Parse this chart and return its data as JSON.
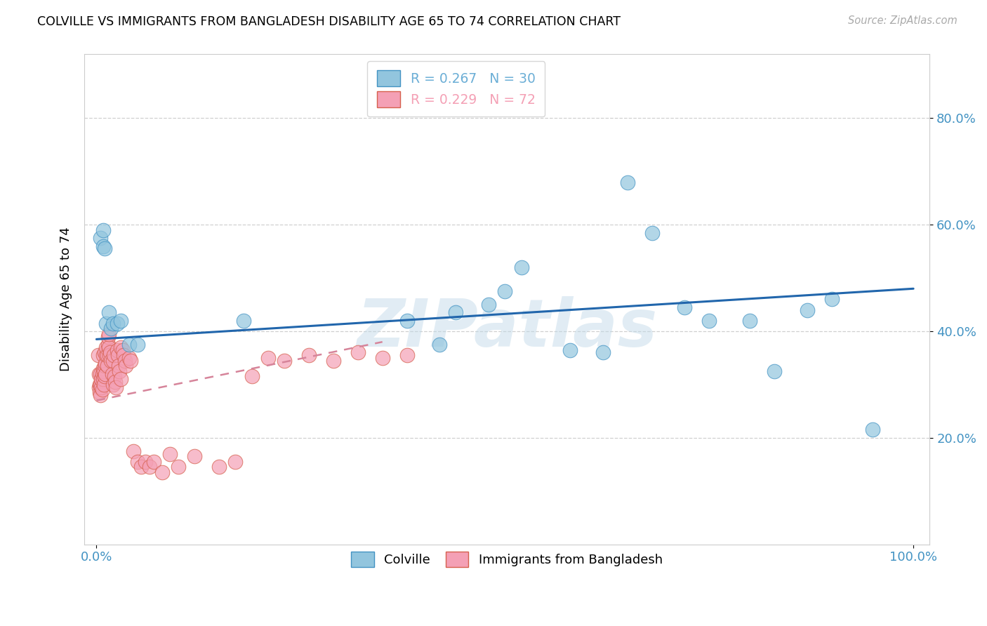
{
  "title": "COLVILLE VS IMMIGRANTS FROM BANGLADESH DISABILITY AGE 65 TO 74 CORRELATION CHART",
  "source": "Source: ZipAtlas.com",
  "ylabel": "Disability Age 65 to 74",
  "watermark": "ZIPatlas",
  "colville_color": "#92c5de",
  "bangladesh_color": "#f4a0b5",
  "colville_edge": "#4393c3",
  "bangladesh_edge": "#d6604d",
  "colville_trendline_color": "#2166ac",
  "bangladesh_trendline_color": "#d6849a",
  "legend_entries": [
    {
      "label": "R = 0.267   N = 30",
      "color": "#6baed6"
    },
    {
      "label": "R = 0.229   N = 72",
      "color": "#f4a0b5"
    }
  ],
  "colville_x": [
    0.005,
    0.008,
    0.008,
    0.01,
    0.012,
    0.015,
    0.018,
    0.02,
    0.025,
    0.03,
    0.04,
    0.05,
    0.18,
    0.38,
    0.42,
    0.44,
    0.48,
    0.5,
    0.52,
    0.58,
    0.62,
    0.65,
    0.68,
    0.72,
    0.75,
    0.8,
    0.83,
    0.87,
    0.9,
    0.95
  ],
  "colville_y": [
    0.575,
    0.59,
    0.56,
    0.555,
    0.415,
    0.435,
    0.405,
    0.415,
    0.415,
    0.42,
    0.375,
    0.375,
    0.42,
    0.42,
    0.375,
    0.435,
    0.45,
    0.475,
    0.52,
    0.365,
    0.36,
    0.68,
    0.585,
    0.445,
    0.42,
    0.42,
    0.325,
    0.44,
    0.46,
    0.215
  ],
  "bangladesh_x": [
    0.002,
    0.003,
    0.003,
    0.004,
    0.004,
    0.005,
    0.005,
    0.005,
    0.006,
    0.006,
    0.007,
    0.007,
    0.008,
    0.008,
    0.008,
    0.009,
    0.009,
    0.01,
    0.01,
    0.01,
    0.011,
    0.011,
    0.012,
    0.012,
    0.013,
    0.013,
    0.014,
    0.014,
    0.015,
    0.015,
    0.016,
    0.017,
    0.018,
    0.019,
    0.02,
    0.02,
    0.021,
    0.022,
    0.023,
    0.024,
    0.025,
    0.026,
    0.027,
    0.028,
    0.03,
    0.03,
    0.032,
    0.033,
    0.035,
    0.036,
    0.04,
    0.042,
    0.045,
    0.05,
    0.055,
    0.06,
    0.065,
    0.07,
    0.08,
    0.09,
    0.1,
    0.12,
    0.15,
    0.17,
    0.19,
    0.21,
    0.23,
    0.26,
    0.29,
    0.32,
    0.35,
    0.38
  ],
  "bangladesh_y": [
    0.355,
    0.32,
    0.295,
    0.285,
    0.3,
    0.28,
    0.3,
    0.32,
    0.295,
    0.31,
    0.29,
    0.32,
    0.31,
    0.33,
    0.355,
    0.3,
    0.325,
    0.315,
    0.335,
    0.36,
    0.32,
    0.34,
    0.355,
    0.37,
    0.335,
    0.355,
    0.375,
    0.39,
    0.37,
    0.395,
    0.355,
    0.36,
    0.345,
    0.32,
    0.3,
    0.345,
    0.355,
    0.315,
    0.305,
    0.295,
    0.365,
    0.355,
    0.335,
    0.325,
    0.31,
    0.37,
    0.365,
    0.355,
    0.345,
    0.335,
    0.35,
    0.345,
    0.175,
    0.155,
    0.145,
    0.155,
    0.145,
    0.155,
    0.135,
    0.17,
    0.145,
    0.165,
    0.145,
    0.155,
    0.315,
    0.35,
    0.345,
    0.355,
    0.345,
    0.36,
    0.35,
    0.355
  ],
  "colville_trend_x": [
    0.0,
    1.0
  ],
  "colville_trend_y": [
    0.385,
    0.48
  ],
  "bangladesh_trend_x": [
    0.0,
    0.35
  ],
  "bangladesh_trend_y": [
    0.27,
    0.38
  ],
  "ylim": [
    0.0,
    0.9
  ],
  "xlim": [
    0.0,
    1.0
  ],
  "yticks": [
    0.2,
    0.4,
    0.6,
    0.8
  ],
  "ytick_labels": [
    "20.0%",
    "40.0%",
    "60.0%",
    "80.0%"
  ],
  "xtick_labels": [
    "0.0%",
    "100.0%"
  ],
  "xticks": [
    0.0,
    1.0
  ]
}
